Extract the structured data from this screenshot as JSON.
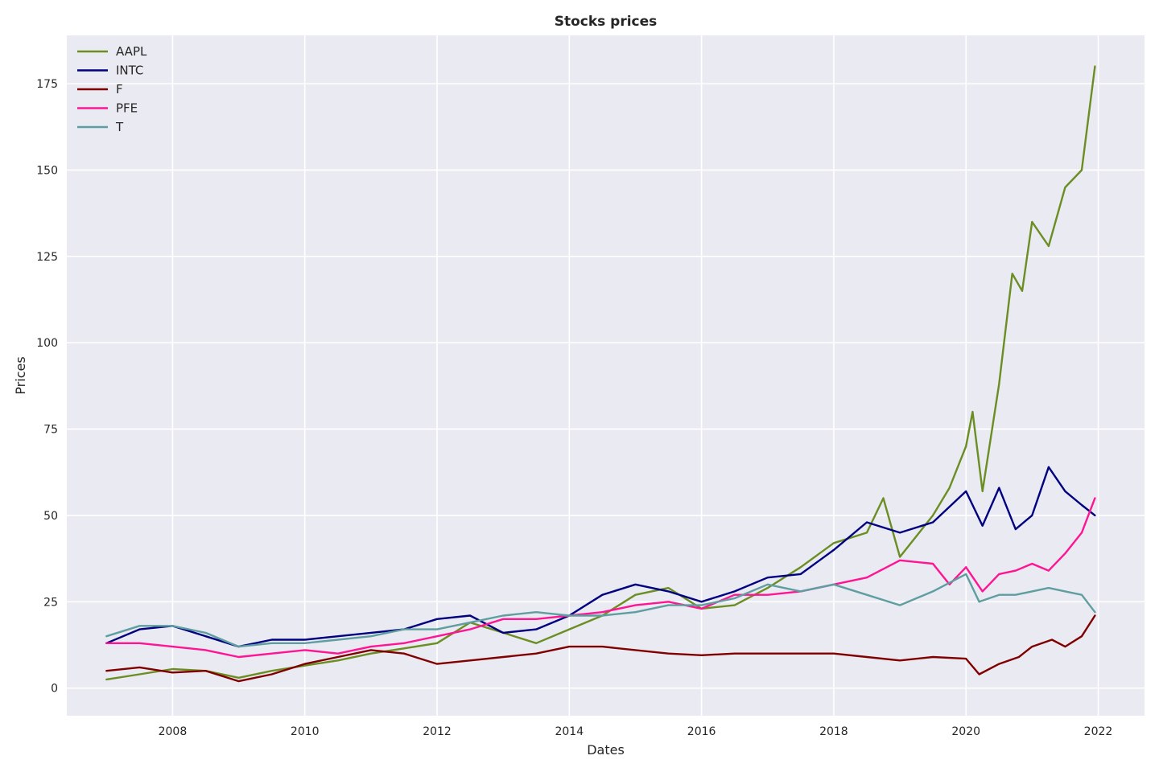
{
  "chart_data": {
    "type": "line",
    "title": "Stocks prices",
    "xlabel": "Dates",
    "ylabel": "Prices",
    "xlim": [
      2006.4,
      2022.7
    ],
    "ylim": [
      -8,
      189
    ],
    "x_ticks": [
      2008,
      2010,
      2012,
      2014,
      2016,
      2018,
      2020,
      2022
    ],
    "x_tick_labels": [
      "2008",
      "2010",
      "2012",
      "2014",
      "2016",
      "2018",
      "2020",
      "2022"
    ],
    "y_ticks": [
      0,
      25,
      50,
      75,
      100,
      125,
      150,
      175
    ],
    "y_tick_labels": [
      "0",
      "25",
      "50",
      "75",
      "100",
      "125",
      "150",
      "175"
    ],
    "grid": true,
    "legend_position": "top-left",
    "background_color": "#eaeaf2",
    "series": [
      {
        "name": "AAPL",
        "color": "#6b8e23",
        "x": [
          2007.0,
          2007.5,
          2008.0,
          2008.5,
          2009.0,
          2009.5,
          2010.0,
          2010.5,
          2011.0,
          2011.5,
          2012.0,
          2012.5,
          2013.0,
          2013.5,
          2014.0,
          2014.5,
          2015.0,
          2015.5,
          2016.0,
          2016.5,
          2017.0,
          2017.5,
          2018.0,
          2018.5,
          2018.75,
          2019.0,
          2019.5,
          2019.75,
          2020.0,
          2020.1,
          2020.25,
          2020.5,
          2020.7,
          2020.85,
          2021.0,
          2021.25,
          2021.5,
          2021.75,
          2021.95
        ],
        "y": [
          2.5,
          4,
          5.5,
          5,
          3,
          5,
          6.5,
          8,
          10,
          11.5,
          13,
          19,
          16,
          13,
          17,
          21,
          27,
          29,
          23,
          24,
          29,
          35,
          42,
          45,
          55,
          38,
          50,
          58,
          70,
          80,
          57,
          88,
          120,
          115,
          135,
          128,
          145,
          150,
          180
        ]
      },
      {
        "name": "INTC",
        "color": "#000080",
        "x": [
          2007.0,
          2007.5,
          2008.0,
          2008.5,
          2009.0,
          2009.5,
          2010.0,
          2010.5,
          2011.0,
          2011.5,
          2012.0,
          2012.5,
          2013.0,
          2013.5,
          2014.0,
          2014.5,
          2015.0,
          2015.5,
          2016.0,
          2016.5,
          2017.0,
          2017.5,
          2018.0,
          2018.5,
          2019.0,
          2019.5,
          2020.0,
          2020.25,
          2020.5,
          2020.75,
          2021.0,
          2021.25,
          2021.5,
          2021.75,
          2021.95
        ],
        "y": [
          13,
          17,
          18,
          15,
          12,
          14,
          14,
          15,
          16,
          17,
          20,
          21,
          16,
          17,
          21,
          27,
          30,
          28,
          25,
          28,
          32,
          33,
          40,
          48,
          45,
          48,
          57,
          47,
          58,
          46,
          50,
          64,
          57,
          53,
          50
        ]
      },
      {
        "name": "F",
        "color": "#800000",
        "x": [
          2007.0,
          2007.5,
          2008.0,
          2008.5,
          2009.0,
          2009.5,
          2010.0,
          2010.5,
          2011.0,
          2011.5,
          2012.0,
          2012.5,
          2013.0,
          2013.5,
          2014.0,
          2014.5,
          2015.0,
          2015.5,
          2016.0,
          2016.5,
          2017.0,
          2017.5,
          2018.0,
          2018.5,
          2019.0,
          2019.5,
          2020.0,
          2020.2,
          2020.5,
          2020.8,
          2021.0,
          2021.3,
          2021.5,
          2021.75,
          2021.95
        ],
        "y": [
          5,
          6,
          4.5,
          5,
          2,
          4,
          7,
          9,
          11,
          10,
          7,
          8,
          9,
          10,
          12,
          12,
          11,
          10,
          9.5,
          10,
          10,
          10,
          10,
          9,
          8,
          9,
          8.5,
          4,
          7,
          9,
          12,
          14,
          12,
          15,
          21
        ]
      },
      {
        "name": "PFE",
        "color": "#ff1493",
        "x": [
          2007.0,
          2007.5,
          2008.0,
          2008.5,
          2009.0,
          2009.5,
          2010.0,
          2010.5,
          2011.0,
          2011.5,
          2012.0,
          2012.5,
          2013.0,
          2013.5,
          2014.0,
          2014.5,
          2015.0,
          2015.5,
          2016.0,
          2016.5,
          2017.0,
          2017.5,
          2018.0,
          2018.5,
          2019.0,
          2019.5,
          2019.75,
          2020.0,
          2020.25,
          2020.5,
          2020.75,
          2021.0,
          2021.25,
          2021.5,
          2021.75,
          2021.95
        ],
        "y": [
          13,
          13,
          12,
          11,
          9,
          10,
          11,
          10,
          12,
          13,
          15,
          17,
          20,
          20,
          21,
          22,
          24,
          25,
          23,
          27,
          27,
          28,
          30,
          32,
          37,
          36,
          30,
          35,
          28,
          33,
          34,
          36,
          34,
          39,
          45,
          55
        ]
      },
      {
        "name": "T",
        "color": "#5f9ea0",
        "x": [
          2007.0,
          2007.5,
          2008.0,
          2008.5,
          2009.0,
          2009.5,
          2010.0,
          2010.5,
          2011.0,
          2011.5,
          2012.0,
          2012.5,
          2013.0,
          2013.5,
          2014.0,
          2014.5,
          2015.0,
          2015.5,
          2016.0,
          2016.5,
          2017.0,
          2017.5,
          2018.0,
          2018.5,
          2019.0,
          2019.5,
          2020.0,
          2020.2,
          2020.5,
          2020.75,
          2021.0,
          2021.25,
          2021.5,
          2021.75,
          2021.95
        ],
        "y": [
          15,
          18,
          18,
          16,
          12,
          13,
          13,
          14,
          15,
          17,
          17,
          19,
          21,
          22,
          21,
          21,
          22,
          24,
          24,
          26,
          30,
          28,
          30,
          27,
          24,
          28,
          33,
          25,
          27,
          27,
          28,
          29,
          28,
          27,
          22
        ]
      }
    ]
  }
}
